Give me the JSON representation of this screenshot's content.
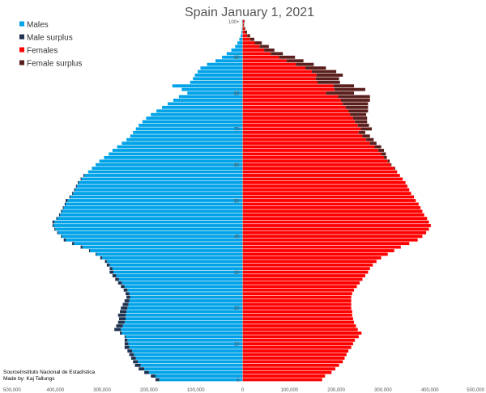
{
  "chart_data": {
    "type": "bar",
    "orientation": "horizontal",
    "title": "Spain January 1, 2021",
    "age_labels": [
      "0",
      "10",
      "20",
      "30",
      "40",
      "50",
      "60",
      "70",
      "80",
      "90",
      "100+"
    ],
    "x_tick_labels": [
      "500,000",
      "400,000",
      "300,000",
      "200,000",
      "100,000",
      "0",
      "100,000",
      "200,000",
      "300,000",
      "400,000",
      "500,000"
    ],
    "xlim": [
      -500000,
      500000
    ],
    "legend": {
      "placement": "top-left",
      "items": [
        {
          "label": "Males",
          "color": "#00a2e8"
        },
        {
          "label": "Male surplus",
          "color": "#1f3250"
        },
        {
          "label": "Females",
          "color": "#ff0000"
        },
        {
          "label": "Female surplus",
          "color": "#5a1f1c"
        }
      ]
    },
    "source_lines": [
      "SourceInstituto Nacional de Estadística",
      "Made by: Kaj Tallungs"
    ],
    "ages": [
      0,
      1,
      2,
      3,
      4,
      5,
      6,
      7,
      8,
      9,
      10,
      11,
      12,
      13,
      14,
      15,
      16,
      17,
      18,
      19,
      20,
      21,
      22,
      23,
      24,
      25,
      26,
      27,
      28,
      29,
      30,
      31,
      32,
      33,
      34,
      35,
      36,
      37,
      38,
      39,
      40,
      41,
      42,
      43,
      44,
      45,
      46,
      47,
      48,
      49,
      50,
      51,
      52,
      53,
      54,
      55,
      56,
      57,
      58,
      59,
      60,
      61,
      62,
      63,
      64,
      65,
      66,
      67,
      68,
      69,
      70,
      71,
      72,
      73,
      74,
      75,
      76,
      77,
      78,
      79,
      80,
      81,
      82,
      83,
      84,
      85,
      86,
      87,
      88,
      89,
      90,
      91,
      92,
      93,
      94,
      95,
      96,
      97,
      98,
      99,
      100
    ],
    "series": [
      {
        "name": "Males",
        "values": [
          178000,
          186000,
          200000,
          210000,
          218000,
          224000,
          228000,
          232000,
          236000,
          242000,
          244000,
          246000,
          250000,
          258000,
          260000,
          256000,
          252000,
          250000,
          250000,
          248000,
          246000,
          244000,
          242000,
          240000,
          242000,
          246000,
          252000,
          258000,
          264000,
          270000,
          276000,
          278000,
          284000,
          290000,
          300000,
          312000,
          326000,
          342000,
          360000,
          378000,
          386000,
          394000,
          400000,
          404000,
          402000,
          396000,
          390000,
          386000,
          382000,
          378000,
          374000,
          368000,
          362000,
          358000,
          354000,
          350000,
          344000,
          338000,
          330000,
          322000,
          314000,
          306000,
          296000,
          286000,
          278000,
          268000,
          258000,
          248000,
          240000,
          234000,
          228000,
          222000,
          214000,
          206000,
          196000,
          184000,
          172000,
          160000,
          148000,
          136000,
          118000,
          130000,
          150000,
          112000,
          106000,
          102000,
          96000,
          90000,
          76000,
          58000,
          44000,
          34000,
          24000,
          16000,
          11000,
          7000,
          4000,
          2600,
          1600,
          900,
          1400
        ]
      },
      {
        "name": "Females",
        "values": [
          170000,
          176000,
          190000,
          198000,
          206000,
          214000,
          218000,
          222000,
          226000,
          232000,
          236000,
          240000,
          248000,
          254000,
          246000,
          242000,
          238000,
          236000,
          234000,
          234000,
          232000,
          232000,
          232000,
          232000,
          234000,
          238000,
          244000,
          250000,
          256000,
          262000,
          268000,
          272000,
          278000,
          286000,
          296000,
          310000,
          324000,
          338000,
          356000,
          374000,
          384000,
          392000,
          398000,
          402000,
          398000,
          394000,
          388000,
          384000,
          380000,
          376000,
          370000,
          366000,
          360000,
          356000,
          352000,
          348000,
          342000,
          336000,
          330000,
          324000,
          316000,
          310000,
          302000,
          296000,
          290000,
          282000,
          272000,
          264000,
          256000,
          248000,
          252000,
          246000,
          240000,
          236000,
          230000,
          226000,
          220000,
          214000,
          210000,
          204000,
          178000,
          196000,
          194000,
          160000,
          156000,
          158000,
          148000,
          134000,
          114000,
          94000,
          78000,
          60000,
          46000,
          36000,
          26000,
          16000,
          10000,
          6000,
          3600,
          2000,
          2800
        ]
      }
    ],
    "surplus_series": [
      {
        "name": "Male surplus",
        "values": [
          8000,
          10000,
          10000,
          12000,
          12000,
          10000,
          10000,
          10000,
          10000,
          10000,
          8000,
          6000,
          2000,
          4000,
          14000,
          14000,
          14000,
          14000,
          16000,
          14000,
          14000,
          12000,
          10000,
          8000,
          8000,
          8000,
          8000,
          8000,
          8000,
          8000,
          8000,
          6000,
          6000,
          4000,
          4000,
          2000,
          2000,
          4000,
          4000,
          4000,
          2000,
          2000,
          2000,
          2000,
          4000,
          2000,
          2000,
          2000,
          2000,
          2000,
          4000,
          2000,
          2000,
          2000,
          2000,
          2000,
          2000,
          2000,
          0,
          0,
          0,
          0,
          0,
          0,
          0,
          0,
          0,
          0,
          0,
          0,
          0,
          0,
          0,
          0,
          0,
          0,
          0,
          0,
          0,
          0,
          0,
          0,
          0,
          0,
          0,
          0,
          0,
          0,
          0,
          0,
          0,
          0,
          0,
          0,
          0,
          0,
          0,
          0,
          0,
          0,
          0
        ]
      },
      {
        "name": "Female surplus",
        "values": [
          0,
          0,
          0,
          0,
          0,
          0,
          0,
          0,
          0,
          0,
          0,
          0,
          0,
          0,
          0,
          0,
          0,
          0,
          0,
          0,
          0,
          0,
          0,
          0,
          0,
          0,
          0,
          0,
          0,
          0,
          0,
          0,
          0,
          0,
          0,
          0,
          0,
          0,
          0,
          0,
          0,
          0,
          0,
          0,
          0,
          0,
          0,
          0,
          0,
          0,
          0,
          0,
          0,
          0,
          0,
          0,
          0,
          0,
          0,
          2000,
          2000,
          4000,
          6000,
          10000,
          12000,
          14000,
          14000,
          16000,
          16000,
          14000,
          24000,
          24000,
          26000,
          30000,
          34000,
          42000,
          48000,
          54000,
          62000,
          68000,
          60000,
          66000,
          44000,
          48000,
          50000,
          56000,
          52000,
          44000,
          38000,
          36000,
          34000,
          26000,
          22000,
          20000,
          15000,
          9000,
          6000,
          3400,
          2000,
          1100,
          1400
        ]
      }
    ]
  }
}
